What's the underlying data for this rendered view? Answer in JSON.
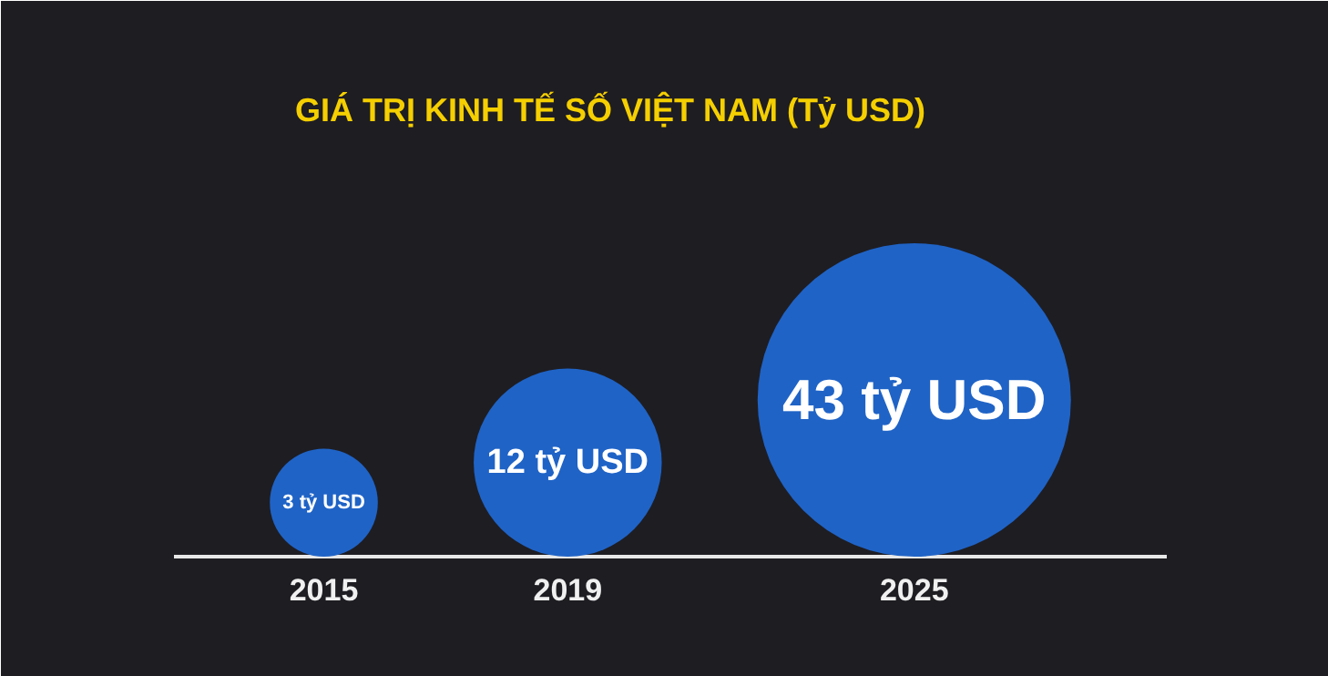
{
  "chart_data": {
    "type": "other",
    "title": "GIÁ TRỊ KINH TẾ SỐ VIỆT NAM (Tỷ USD)",
    "categories": [
      "2015",
      "2019",
      "2025"
    ],
    "values": [
      3,
      12,
      43
    ],
    "value_labels": [
      "3 tỷ USD",
      "12 tỷ USD",
      "43 tỷ USD"
    ],
    "colors": [
      "#1f63c6",
      "#1f63c6",
      "#1f63c6"
    ]
  }
}
